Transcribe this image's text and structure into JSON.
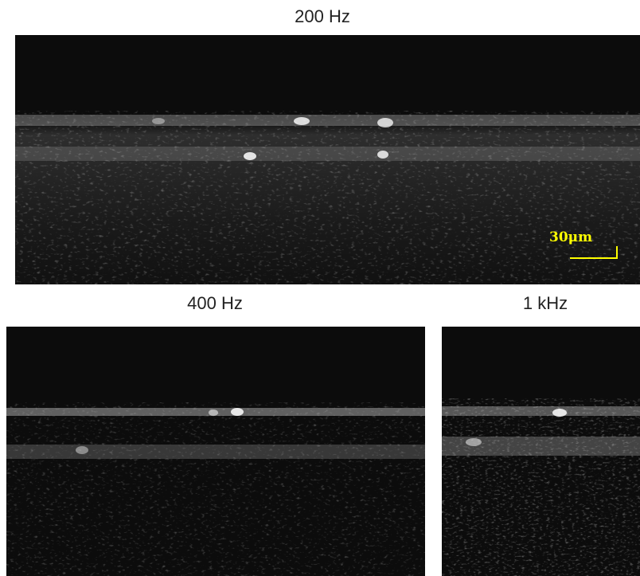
{
  "panels": [
    {
      "label": "200 Hz"
    },
    {
      "label": "400 Hz"
    },
    {
      "label": "1 kHz"
    }
  ],
  "scale_bar": {
    "text": "30μm",
    "color": "#ffff00"
  }
}
